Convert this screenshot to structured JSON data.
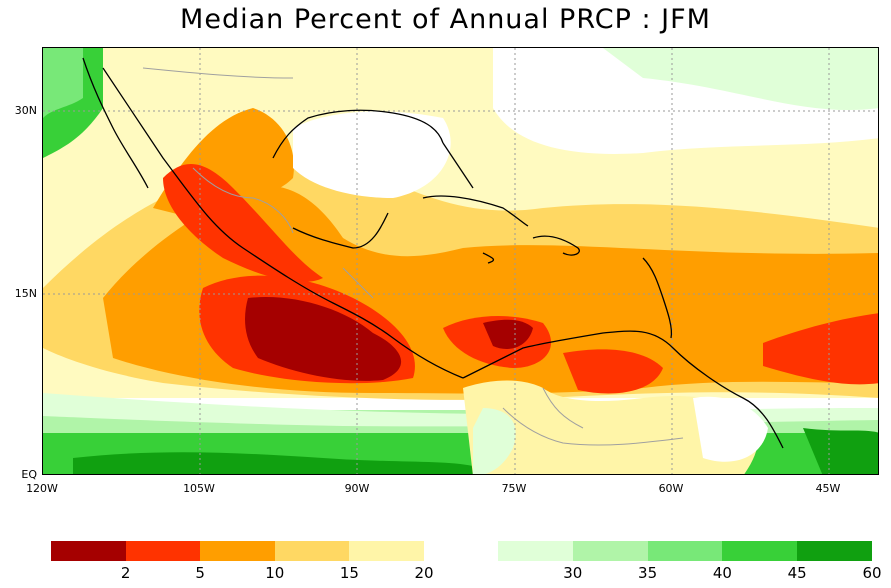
{
  "title": "Median Percent of Annual PRCP  :  JFM",
  "x_ticks": [
    "120W",
    "105W",
    "90W",
    "75W",
    "60W",
    "45W"
  ],
  "y_ticks": [
    "30N",
    "15N",
    "EQ"
  ],
  "legend": {
    "left": {
      "colors": [
        "#a50000",
        "#ff3300",
        "#ff9e00",
        "#ffd863",
        "#fff5a8"
      ],
      "labels": [
        "2",
        "5",
        "10",
        "15",
        "20"
      ]
    },
    "right": {
      "colors": [
        "#e0ffd8",
        "#b0f4a8",
        "#78e878",
        "#38d038",
        "#10a010"
      ],
      "labels": [
        "30",
        "35",
        "40",
        "45",
        "60"
      ]
    }
  },
  "colors": {
    "ocean_default": "#fffac0",
    "land_default": "#ffffff",
    "country_border": "#a0a0a0",
    "coast": "#000000",
    "grid": "#9a9a9a"
  }
}
